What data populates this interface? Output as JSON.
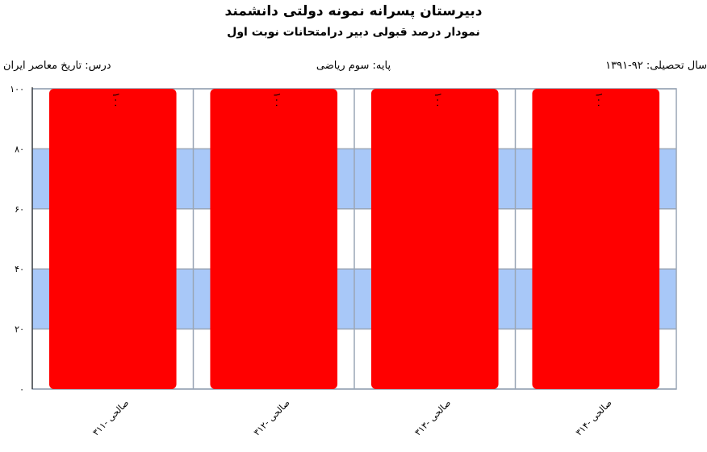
{
  "header": {
    "title": "دبیرستان پسرانه نمونه دولتی دانشمند",
    "subtitle": "نمودار درصد قبولی دبیر درامتحانات نوبت اول"
  },
  "info": {
    "year": "سال تحصیلی: ۹۲-۱۳۹۱",
    "grade": "پایه: سوم ریاضی",
    "course": "درس: تاریخ  معاصر ایران"
  },
  "chart_data": {
    "type": "bar",
    "categories": [
      "صالحی -۳۱۱",
      "صالحی -۳۱۲",
      "صالحی -۳۱۳",
      "صالحی -۳۱۴"
    ],
    "values": [
      100,
      100,
      100,
      100
    ],
    "value_labels": [
      "۱۰۰",
      "۱۰۰",
      "۱۰۰",
      "۱۰۰"
    ],
    "ylim": [
      0,
      100
    ],
    "y_ticks": [
      0,
      20,
      40,
      60,
      80,
      100
    ],
    "y_tick_labels": [
      "۰",
      "۲۰",
      "۴۰",
      "۶۰",
      "۸۰",
      "۱۰۰"
    ],
    "bar_color": "#ff0000",
    "band_color": "#a8c8f8",
    "grid_color": "#9aa6b6",
    "grid": true,
    "legend": "none"
  }
}
